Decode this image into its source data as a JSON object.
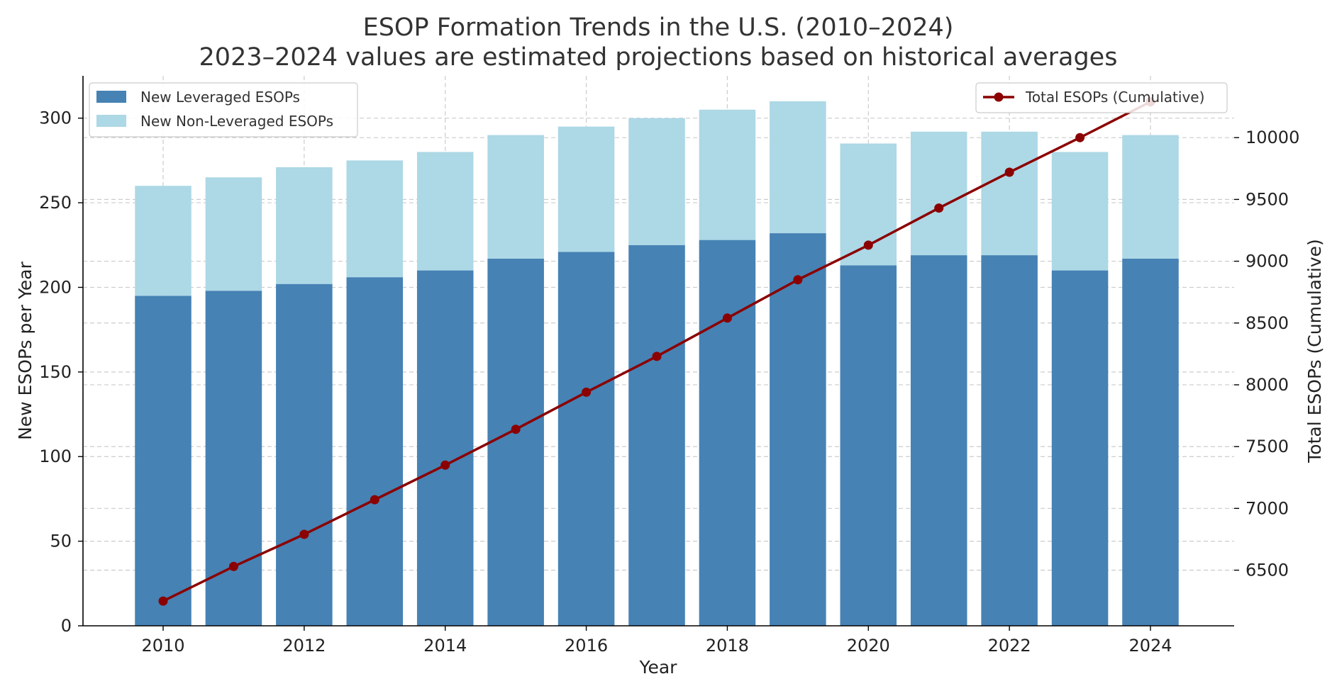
{
  "chart_data": {
    "type": "bar",
    "title": "ESOP Formation Trends in the U.S. (2010–2024)",
    "subtitle": "2023–2024 values are estimated projections based on historical averages",
    "xlabel": "Year",
    "ylabel": "New ESOPs per Year",
    "y2label": "Total ESOPs (Cumulative)",
    "stacked": true,
    "grid": true,
    "x": [
      2010,
      2011,
      2012,
      2013,
      2014,
      2015,
      2016,
      2017,
      2018,
      2019,
      2020,
      2021,
      2022,
      2023,
      2024
    ],
    "x_ticks": [
      2010,
      2012,
      2014,
      2016,
      2018,
      2020,
      2022,
      2024
    ],
    "ylim": [
      0,
      325
    ],
    "y_ticks": [
      0,
      50,
      100,
      150,
      200,
      250,
      300
    ],
    "y2lim": [
      6050,
      10500
    ],
    "y2_ticks": [
      6500,
      7000,
      7500,
      8000,
      8500,
      9000,
      9500,
      10000
    ],
    "series": [
      {
        "name": "New Leveraged ESOPs",
        "kind": "bar",
        "color": "#4682b4",
        "values": [
          195,
          198,
          202,
          206,
          210,
          217,
          221,
          225,
          228,
          232,
          213,
          219,
          219,
          210,
          217
        ]
      },
      {
        "name": "New Non-Leveraged ESOPs",
        "kind": "bar",
        "color": "#add8e6",
        "values": [
          65,
          67,
          69,
          69,
          70,
          73,
          74,
          75,
          77,
          78,
          72,
          73,
          73,
          70,
          73
        ]
      },
      {
        "name": "Total ESOPs (Cumulative)",
        "kind": "line",
        "axis": "right",
        "color": "#8b0000",
        "values": [
          6250,
          6530,
          6790,
          7070,
          7350,
          7640,
          7940,
          8230,
          8540,
          8850,
          9130,
          9430,
          9720,
          10000,
          10290
        ]
      }
    ],
    "legend_left_position": "top-left",
    "legend_right_position": "top-right"
  }
}
